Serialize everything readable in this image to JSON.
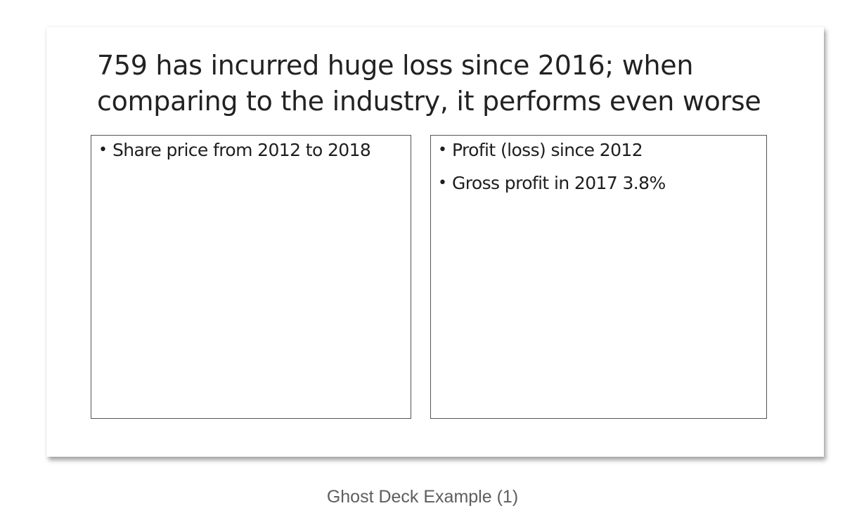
{
  "slide": {
    "title": "759 has incurred huge loss since 2016; when comparing to the industry, it performs even worse",
    "left_box": {
      "bullets": [
        "Share price from 2012 to 2018"
      ]
    },
    "right_box": {
      "bullets": [
        "Profit (loss) since 2012",
        "Gross profit in 2017 3.8%"
      ]
    }
  },
  "caption": "Ghost Deck Example (1)"
}
